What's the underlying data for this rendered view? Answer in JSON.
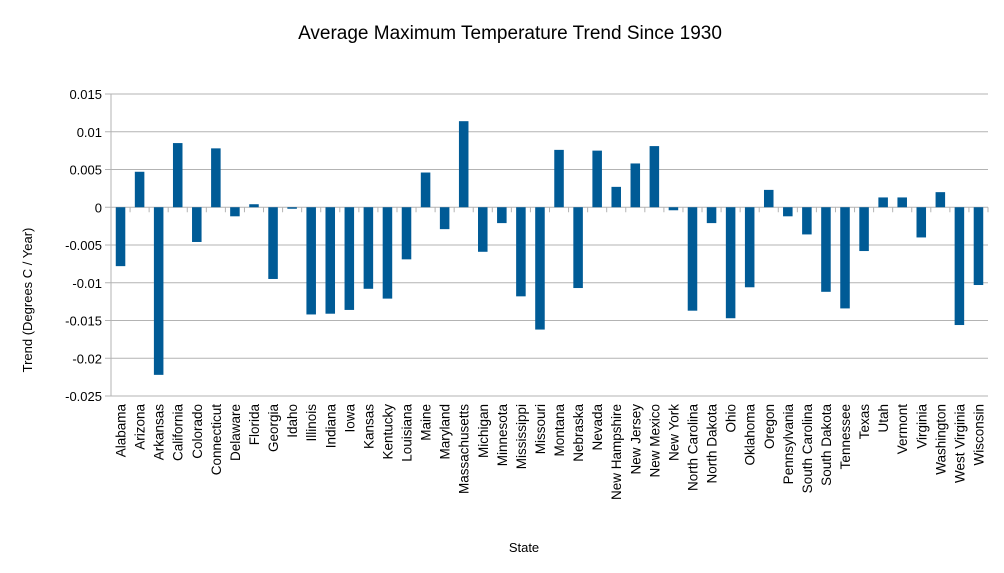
{
  "chart_data": {
    "type": "bar",
    "title": "Average Maximum Temperature Trend Since 1930",
    "xlabel": "State",
    "ylabel": "Trend (Degrees C / Year)",
    "ylim": [
      -0.025,
      0.015
    ],
    "yticks": [
      "0.015",
      "0.01",
      "0.005",
      "0",
      "-0.005",
      "-0.01",
      "-0.015",
      "-0.02",
      "-0.025"
    ],
    "ytick_values": [
      0.015,
      0.01,
      0.005,
      0,
      -0.005,
      -0.01,
      -0.015,
      -0.02,
      -0.025
    ],
    "grid": true,
    "bar_color": "#005b96",
    "categories": [
      "Alabama",
      "Arizona",
      "Arkansas",
      "California",
      "Colorado",
      "Connecticut",
      "Delaware",
      "Florida",
      "Georgia",
      "Idaho",
      "Illinois",
      "Indiana",
      "Iowa",
      "Kansas",
      "Kentucky",
      "Louisiana",
      "Maine",
      "Maryland",
      "Massachusetts",
      "Michigan",
      "Minnesota",
      "Mississippi",
      "Missouri",
      "Montana",
      "Nebraska",
      "Nevada",
      "New Hampshire",
      "New Jersey",
      "New Mexico",
      "New York",
      "North Carolina",
      "North Dakota",
      "Ohio",
      "Oklahoma",
      "Oregon",
      "Pennsylvania",
      "South Carolina",
      "South Dakota",
      "Tennessee",
      "Texas",
      "Utah",
      "Vermont",
      "Virginia",
      "Washington",
      "West Virginia",
      "Wisconsin"
    ],
    "values": [
      -0.0078,
      0.0047,
      -0.0222,
      0.0085,
      -0.0046,
      0.0078,
      -0.0012,
      0.0004,
      -0.0095,
      -0.0002,
      -0.0142,
      -0.0141,
      -0.0136,
      -0.0108,
      -0.0121,
      -0.0069,
      0.0046,
      -0.0029,
      0.0114,
      -0.0059,
      -0.0021,
      -0.0118,
      -0.0162,
      0.0076,
      -0.0107,
      0.0075,
      0.0027,
      0.0058,
      0.0081,
      -0.0004,
      -0.0137,
      -0.0021,
      -0.0147,
      -0.0106,
      0.0023,
      -0.0012,
      -0.0036,
      -0.0112,
      -0.0134,
      -0.0058,
      0.0013,
      0.0013,
      -0.004,
      0.002,
      -0.0156,
      -0.0103
    ]
  }
}
